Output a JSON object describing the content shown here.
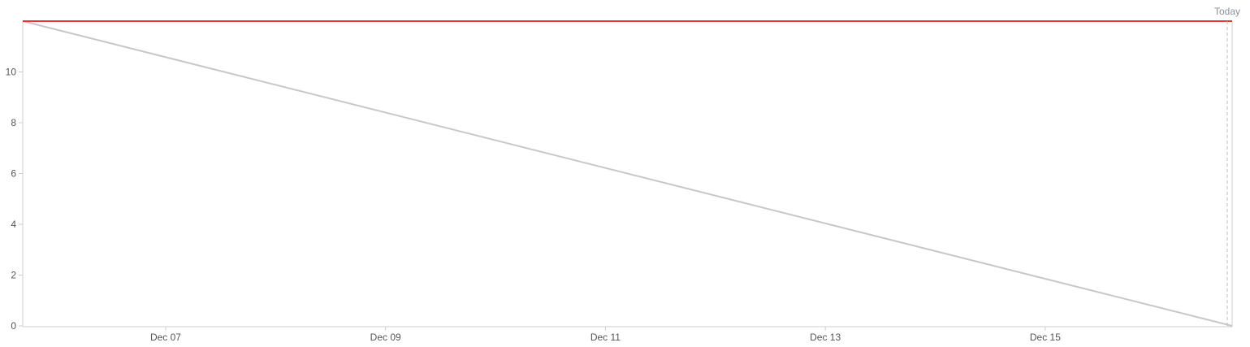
{
  "chart_data": {
    "type": "line",
    "title": "",
    "xlabel": "",
    "ylabel": "",
    "x_axis": {
      "type": "date",
      "range": [
        "Dec 05.7",
        "Dec 16.7"
      ],
      "ticks": [
        "Dec 07",
        "Dec 09",
        "Dec 11",
        "Dec 13",
        "Dec 15"
      ]
    },
    "y_axis": {
      "range": [
        0,
        12
      ],
      "ticks": [
        0,
        2,
        4,
        6,
        8,
        10
      ]
    },
    "grid": false,
    "series": [
      {
        "key": "ideal",
        "color": "#c8c8c8",
        "points": [
          [
            "Dec 05.7",
            12
          ],
          [
            "Dec 16.7",
            0
          ]
        ]
      },
      {
        "key": "scope",
        "color": "#e53935",
        "points": [
          [
            "Dec 05.7",
            12
          ],
          [
            "Dec 16.7",
            12
          ]
        ]
      }
    ],
    "today_marker": {
      "label": "Today",
      "x": "Dec 16.7",
      "color": "#8a8fa0"
    }
  }
}
